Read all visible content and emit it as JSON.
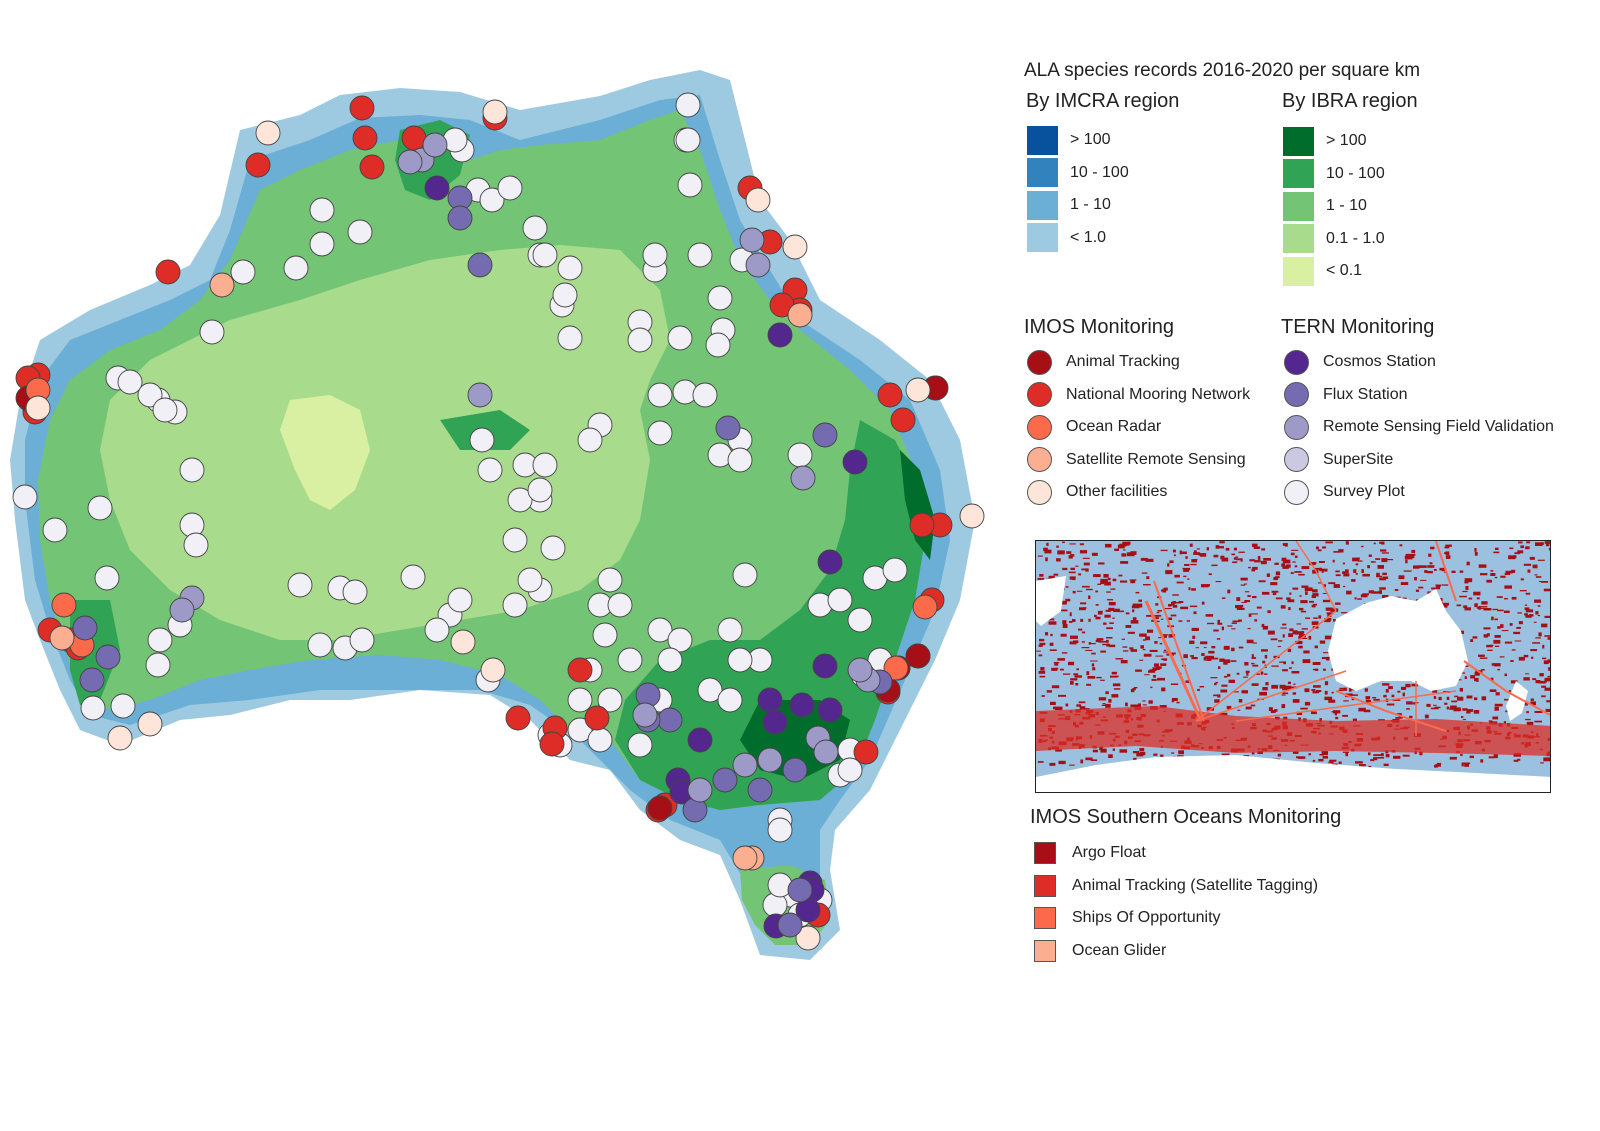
{
  "map": {
    "main_title": "ALA species records 2016-2020 per square km",
    "imcra": {
      "heading": "By IMCRA region",
      "classes": [
        {
          "label": "> 100",
          "color": "#08519c"
        },
        {
          "label": "10 - 100",
          "color": "#3182bd"
        },
        {
          "label": "1 - 10",
          "color": "#6baed6"
        },
        {
          "label": "< 1.0",
          "color": "#9ecae1"
        }
      ]
    },
    "ibra": {
      "heading": "By IBRA region",
      "classes": [
        {
          "label": "> 100",
          "color": "#006d2c"
        },
        {
          "label": "10 - 100",
          "color": "#31a354"
        },
        {
          "label": "1 - 10",
          "color": "#74c476"
        },
        {
          "label": "0.1 - 1.0",
          "color": "#a8dc8c"
        },
        {
          "label": "< 0.1",
          "color": "#d9f0a3"
        }
      ]
    },
    "imos": {
      "heading": "IMOS Monitoring",
      "items": [
        {
          "label": "Animal Tracking",
          "color": "#a50f15"
        },
        {
          "label": "National Mooring Network",
          "color": "#de2d26"
        },
        {
          "label": "Ocean Radar",
          "color": "#fb6a4a"
        },
        {
          "label": "Satellite Remote Sensing",
          "color": "#fcae91"
        },
        {
          "label": "Other facilities",
          "color": "#fee5d9"
        }
      ]
    },
    "tern": {
      "heading": "TERN Monitoring",
      "items": [
        {
          "label": "Cosmos Station",
          "color": "#54278f"
        },
        {
          "label": "Flux Station",
          "color": "#756bb1"
        },
        {
          "label": "Remote Sensing Field Validation",
          "color": "#9e9ac8"
        },
        {
          "label": "SuperSite",
          "color": "#cbc9e2"
        },
        {
          "label": "Survey Plot",
          "color": "#f2f0f7"
        }
      ]
    },
    "southern": {
      "heading": "IMOS Southern Oceans Monitoring",
      "items": [
        {
          "label": "Argo Float",
          "color": "#a50f15"
        },
        {
          "label": "Animal Tracking (Satellite Tagging)",
          "color": "#de2d26"
        },
        {
          "label": "Ships Of Opportunity",
          "color": "#fb6a4a"
        },
        {
          "label": "Ocean Glider",
          "color": "#fcae91"
        }
      ]
    }
  }
}
